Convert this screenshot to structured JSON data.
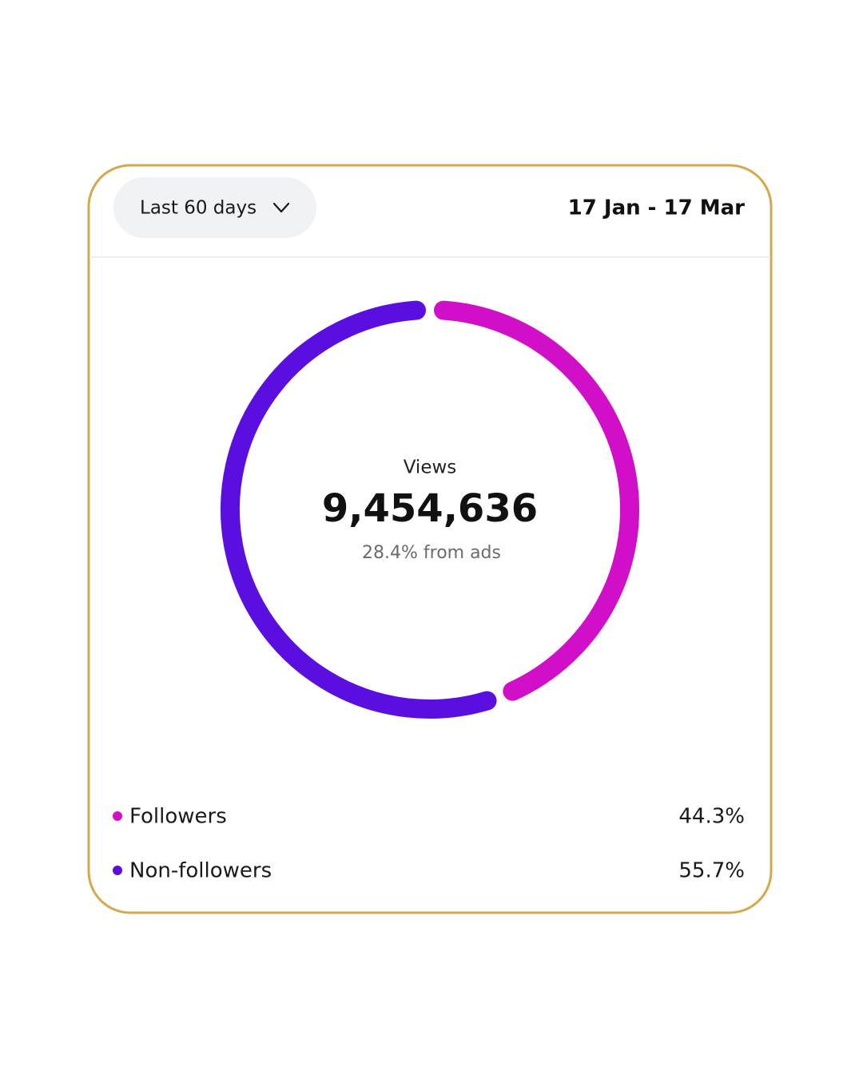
{
  "header": {
    "period": "Last 60 days",
    "date_range": "17 Jan - 17 Mar"
  },
  "chart_data": {
    "type": "donut",
    "center_label": "Views",
    "center_value": "9,454,636",
    "center_note": "28.4% from ads",
    "categories": [
      "Followers",
      "Non-followers"
    ],
    "values": [
      44.3,
      55.7
    ],
    "value_labels": [
      "44.3%",
      "55.7%"
    ],
    "colors": [
      "#d20fc8",
      "#5a0fe0"
    ]
  }
}
